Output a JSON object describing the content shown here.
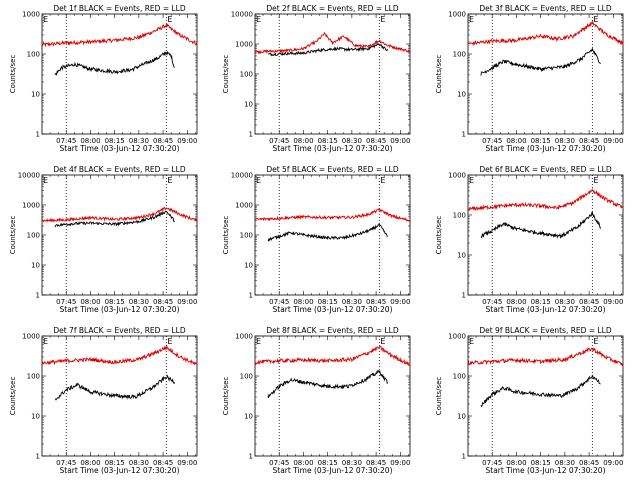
{
  "figure": {
    "start_time_label": "Start Time (03-Jun-12 07:30:20)",
    "ylabel": "Counts/sec"
  },
  "chart_data": [
    {
      "type": "line",
      "title": "Det 1f BLACK = Events, RED = LLD",
      "xlabel": "Start Time (03-Jun-12 07:30:20)",
      "ylabel": "Counts/sec",
      "y_scale": "log",
      "ylim": [
        1,
        1000
      ],
      "y_ticks": [
        "1",
        "10",
        "100",
        "1000"
      ],
      "x_ticks": [
        "07:45",
        "08:00",
        "08:15",
        "08:30",
        "08:45",
        "09:00"
      ],
      "dotted_markers": [
        "07:45",
        "08:47"
      ],
      "marker_letters": [
        {
          "text": "E",
          "at": "07:30"
        },
        {
          "text": "E",
          "at": "08:47"
        }
      ],
      "series": [
        {
          "color": "#dd0000",
          "points": [
            [
              "07:30",
              170
            ],
            [
              "07:45",
              190
            ],
            [
              "08:00",
              200
            ],
            [
              "08:15",
              220
            ],
            [
              "08:30",
              260
            ],
            [
              "08:40",
              380
            ],
            [
              "08:47",
              520
            ],
            [
              "08:55",
              300
            ],
            [
              "09:06",
              180
            ]
          ]
        },
        {
          "color": "#000000",
          "points": [
            [
              "07:38",
              30
            ],
            [
              "07:42",
              45
            ],
            [
              "07:50",
              55
            ],
            [
              "08:00",
              42
            ],
            [
              "08:15",
              36
            ],
            [
              "08:25",
              40
            ],
            [
              "08:35",
              60
            ],
            [
              "08:42",
              80
            ],
            [
              "08:47",
              110
            ],
            [
              "08:50",
              90
            ],
            [
              "08:52",
              45
            ]
          ]
        }
      ]
    },
    {
      "type": "line",
      "title": "Det 2f BLACK = Events, RED = LLD",
      "xlabel": "Start Time (03-Jun-12 07:30:20)",
      "ylabel": "Counts/sec",
      "y_scale": "log",
      "ylim": [
        1,
        10000
      ],
      "y_ticks": [
        "1",
        "10",
        "100",
        "1000",
        "10000"
      ],
      "x_ticks": [
        "07:45",
        "08:00",
        "08:15",
        "08:30",
        "08:45",
        "09:00"
      ],
      "dotted_markers": [
        "07:45",
        "08:47"
      ],
      "marker_letters": [
        {
          "text": "E",
          "at": "07:30"
        },
        {
          "text": "E",
          "at": "08:47"
        }
      ],
      "series": [
        {
          "color": "#dd0000",
          "points": [
            [
              "07:30",
              550
            ],
            [
              "07:50",
              600
            ],
            [
              "08:00",
              700
            ],
            [
              "08:08",
              1200
            ],
            [
              "08:13",
              2200
            ],
            [
              "08:18",
              1100
            ],
            [
              "08:25",
              1800
            ],
            [
              "08:32",
              900
            ],
            [
              "08:40",
              800
            ],
            [
              "08:47",
              1300
            ],
            [
              "08:52",
              900
            ],
            [
              "09:06",
              560
            ]
          ]
        },
        {
          "color": "#000000",
          "points": [
            [
              "07:38",
              450
            ],
            [
              "07:50",
              480
            ],
            [
              "08:00",
              500
            ],
            [
              "08:10",
              620
            ],
            [
              "08:20",
              700
            ],
            [
              "08:30",
              650
            ],
            [
              "08:40",
              700
            ],
            [
              "08:47",
              1000
            ],
            [
              "08:52",
              600
            ]
          ]
        }
      ]
    },
    {
      "type": "line",
      "title": "Det 3f BLACK = Events, RED = LLD",
      "xlabel": "Start Time (03-Jun-12 07:30:20)",
      "ylabel": "Counts/sec",
      "y_scale": "log",
      "ylim": [
        1,
        1000
      ],
      "y_ticks": [
        "1",
        "10",
        "100",
        "1000"
      ],
      "x_ticks": [
        "07:45",
        "08:00",
        "08:15",
        "08:30",
        "08:45",
        "09:00"
      ],
      "dotted_markers": [
        "07:45",
        "08:47"
      ],
      "marker_letters": [
        {
          "text": "E",
          "at": "07:30"
        },
        {
          "text": "E",
          "at": "08:47"
        }
      ],
      "series": [
        {
          "color": "#dd0000",
          "points": [
            [
              "07:30",
              180
            ],
            [
              "07:45",
              210
            ],
            [
              "08:00",
              220
            ],
            [
              "08:15",
              280
            ],
            [
              "08:25",
              240
            ],
            [
              "08:35",
              280
            ],
            [
              "08:47",
              600
            ],
            [
              "08:55",
              320
            ],
            [
              "09:06",
              190
            ]
          ]
        },
        {
          "color": "#000000",
          "points": [
            [
              "07:38",
              32
            ],
            [
              "07:45",
              45
            ],
            [
              "07:52",
              65
            ],
            [
              "08:00",
              55
            ],
            [
              "08:15",
              42
            ],
            [
              "08:30",
              48
            ],
            [
              "08:40",
              75
            ],
            [
              "08:47",
              130
            ],
            [
              "08:52",
              60
            ]
          ]
        }
      ]
    },
    {
      "type": "line",
      "title": "Det 4f BLACK = Events, RED = LLD",
      "xlabel": "Start Time (03-Jun-12 07:30:20)",
      "ylabel": "Counts/sec",
      "y_scale": "log",
      "ylim": [
        1,
        10000
      ],
      "y_ticks": [
        "1",
        "10",
        "100",
        "1000",
        "10000"
      ],
      "x_ticks": [
        "07:45",
        "08:00",
        "08:15",
        "08:30",
        "08:45",
        "09:00"
      ],
      "dotted_markers": [
        "07:45",
        "08:47"
      ],
      "marker_letters": [
        {
          "text": "E",
          "at": "07:30"
        },
        {
          "text": "E",
          "at": "08:47"
        }
      ],
      "series": [
        {
          "color": "#dd0000",
          "points": [
            [
              "07:30",
              300
            ],
            [
              "07:45",
              320
            ],
            [
              "08:00",
              380
            ],
            [
              "08:15",
              330
            ],
            [
              "08:30",
              380
            ],
            [
              "08:40",
              520
            ],
            [
              "08:47",
              800
            ],
            [
              "08:55",
              500
            ],
            [
              "09:06",
              300
            ]
          ]
        },
        {
          "color": "#000000",
          "points": [
            [
              "07:38",
              210
            ],
            [
              "07:50",
              240
            ],
            [
              "08:00",
              250
            ],
            [
              "08:15",
              230
            ],
            [
              "08:30",
              280
            ],
            [
              "08:40",
              400
            ],
            [
              "08:47",
              620
            ],
            [
              "08:52",
              300
            ]
          ]
        }
      ]
    },
    {
      "type": "line",
      "title": "Det 5f BLACK = Events, RED = LLD",
      "xlabel": "Start Time (03-Jun-12 07:30:20)",
      "ylabel": "Counts/sec",
      "y_scale": "log",
      "ylim": [
        1,
        10000
      ],
      "y_ticks": [
        "1",
        "10",
        "100",
        "1000",
        "10000"
      ],
      "x_ticks": [
        "07:45",
        "08:00",
        "08:15",
        "08:30",
        "08:45",
        "09:00"
      ],
      "dotted_markers": [
        "07:45",
        "08:47"
      ],
      "marker_letters": [
        {
          "text": "E",
          "at": "07:30"
        },
        {
          "text": "E",
          "at": "08:47"
        }
      ],
      "series": [
        {
          "color": "#dd0000",
          "points": [
            [
              "07:30",
              330
            ],
            [
              "07:45",
              360
            ],
            [
              "08:00",
              400
            ],
            [
              "08:15",
              380
            ],
            [
              "08:30",
              390
            ],
            [
              "08:40",
              480
            ],
            [
              "08:47",
              700
            ],
            [
              "08:55",
              420
            ],
            [
              "09:06",
              300
            ]
          ]
        },
        {
          "color": "#000000",
          "points": [
            [
              "07:38",
              70
            ],
            [
              "07:45",
              90
            ],
            [
              "07:52",
              120
            ],
            [
              "08:00",
              100
            ],
            [
              "08:15",
              80
            ],
            [
              "08:25",
              80
            ],
            [
              "08:35",
              110
            ],
            [
              "08:42",
              150
            ],
            [
              "08:47",
              220
            ],
            [
              "08:52",
              90
            ]
          ]
        }
      ]
    },
    {
      "type": "line",
      "title": "Det 6f BLACK = Events, RED = LLD",
      "xlabel": "Start Time (03-Jun-12 07:30:20)",
      "ylabel": "Counts/sec",
      "y_scale": "log",
      "ylim": [
        1,
        1000
      ],
      "y_ticks": [
        "1",
        "10",
        "100",
        "1000"
      ],
      "x_ticks": [
        "07:45",
        "08:00",
        "08:15",
        "08:30",
        "08:45",
        "09:00"
      ],
      "dotted_markers": [
        "07:45",
        "08:47"
      ],
      "marker_letters": [
        {
          "text": "E",
          "at": "07:30"
        },
        {
          "text": "E",
          "at": "08:47"
        }
      ],
      "series": [
        {
          "color": "#dd0000",
          "points": [
            [
              "07:30",
              140
            ],
            [
              "07:45",
              160
            ],
            [
              "08:00",
              180
            ],
            [
              "08:15",
              170
            ],
            [
              "08:25",
              150
            ],
            [
              "08:35",
              200
            ],
            [
              "08:47",
              420
            ],
            [
              "08:55",
              250
            ],
            [
              "09:06",
              150
            ]
          ]
        },
        {
          "color": "#000000",
          "points": [
            [
              "07:38",
              30
            ],
            [
              "07:45",
              40
            ],
            [
              "07:52",
              60
            ],
            [
              "08:00",
              45
            ],
            [
              "08:15",
              35
            ],
            [
              "08:28",
              30
            ],
            [
              "08:38",
              50
            ],
            [
              "08:47",
              110
            ],
            [
              "08:52",
              50
            ]
          ]
        }
      ]
    },
    {
      "type": "line",
      "title": "Det 7f BLACK = Events, RED = LLD",
      "xlabel": "Start Time (03-Jun-12 07:30:20)",
      "ylabel": "Counts/sec",
      "y_scale": "log",
      "ylim": [
        1,
        1000
      ],
      "y_ticks": [
        "1",
        "10",
        "100",
        "1000"
      ],
      "x_ticks": [
        "07:45",
        "08:00",
        "08:15",
        "08:30",
        "08:45",
        "09:00"
      ],
      "dotted_markers": [
        "07:45",
        "08:47"
      ],
      "marker_letters": [
        {
          "text": "E",
          "at": "07:30"
        },
        {
          "text": "E",
          "at": "08:47"
        }
      ],
      "series": [
        {
          "color": "#dd0000",
          "points": [
            [
              "07:30",
              210
            ],
            [
              "07:45",
              240
            ],
            [
              "08:00",
              260
            ],
            [
              "08:15",
              220
            ],
            [
              "08:30",
              260
            ],
            [
              "08:40",
              380
            ],
            [
              "08:47",
              520
            ],
            [
              "08:55",
              310
            ],
            [
              "09:06",
              190
            ]
          ]
        },
        {
          "color": "#000000",
          "points": [
            [
              "07:38",
              25
            ],
            [
              "07:45",
              45
            ],
            [
              "07:52",
              60
            ],
            [
              "08:00",
              40
            ],
            [
              "08:15",
              32
            ],
            [
              "08:28",
              30
            ],
            [
              "08:38",
              50
            ],
            [
              "08:47",
              95
            ],
            [
              "08:52",
              70
            ]
          ]
        }
      ]
    },
    {
      "type": "line",
      "title": "Det 8f BLACK = Events, RED = LLD",
      "xlabel": "Start Time (03-Jun-12 07:30:20)",
      "ylabel": "Counts/sec",
      "y_scale": "log",
      "ylim": [
        1,
        1000
      ],
      "y_ticks": [
        "1",
        "10",
        "100",
        "1000"
      ],
      "x_ticks": [
        "07:45",
        "08:00",
        "08:15",
        "08:30",
        "08:45",
        "09:00"
      ],
      "dotted_markers": [
        "07:45",
        "08:47"
      ],
      "marker_letters": [
        {
          "text": "E",
          "at": "07:30"
        },
        {
          "text": "E",
          "at": "08:47"
        }
      ],
      "series": [
        {
          "color": "#dd0000",
          "points": [
            [
              "07:30",
              220
            ],
            [
              "07:45",
              240
            ],
            [
              "08:00",
              250
            ],
            [
              "08:15",
              240
            ],
            [
              "08:30",
              260
            ],
            [
              "08:40",
              380
            ],
            [
              "08:47",
              520
            ],
            [
              "08:55",
              320
            ],
            [
              "09:06",
              190
            ]
          ]
        },
        {
          "color": "#000000",
          "points": [
            [
              "07:38",
              30
            ],
            [
              "07:45",
              55
            ],
            [
              "07:52",
              80
            ],
            [
              "08:00",
              70
            ],
            [
              "08:15",
              55
            ],
            [
              "08:28",
              55
            ],
            [
              "08:38",
              80
            ],
            [
              "08:47",
              130
            ],
            [
              "08:52",
              70
            ]
          ]
        }
      ]
    },
    {
      "type": "line",
      "title": "Det 9f BLACK = Events, RED = LLD",
      "xlabel": "Start Time (03-Jun-12 07:30:20)",
      "ylabel": "Counts/sec",
      "y_scale": "log",
      "ylim": [
        1,
        1000
      ],
      "y_ticks": [
        "1",
        "10",
        "100",
        "1000"
      ],
      "x_ticks": [
        "07:45",
        "08:00",
        "08:15",
        "08:30",
        "08:45",
        "09:00"
      ],
      "dotted_markers": [
        "07:45",
        "08:47"
      ],
      "marker_letters": [
        {
          "text": "E",
          "at": "07:30"
        },
        {
          "text": "E",
          "at": "08:47"
        }
      ],
      "series": [
        {
          "color": "#dd0000",
          "points": [
            [
              "07:30",
              210
            ],
            [
              "07:45",
              230
            ],
            [
              "08:00",
              250
            ],
            [
              "08:15",
              230
            ],
            [
              "08:30",
              260
            ],
            [
              "08:40",
              380
            ],
            [
              "08:47",
              480
            ],
            [
              "08:55",
              300
            ],
            [
              "09:06",
              190
            ]
          ]
        },
        {
          "color": "#000000",
          "points": [
            [
              "07:38",
              18
            ],
            [
              "07:45",
              35
            ],
            [
              "07:52",
              50
            ],
            [
              "08:00",
              40
            ],
            [
              "08:15",
              35
            ],
            [
              "08:28",
              32
            ],
            [
              "08:38",
              50
            ],
            [
              "08:47",
              100
            ],
            [
              "08:52",
              65
            ]
          ]
        }
      ]
    }
  ]
}
